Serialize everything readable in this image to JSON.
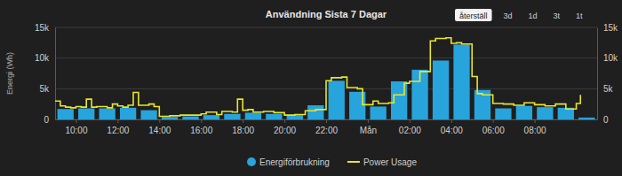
{
  "buttons": [
    "återställ",
    "3d",
    "1d",
    "3t",
    "1t"
  ],
  "chart_data": {
    "type": "bar",
    "title": "Användning Sista 7 Dagar",
    "y_label": "Energi (Wh)",
    "xlim": [
      9,
      35
    ],
    "xticks": [
      {
        "value": 10,
        "label": "10:00"
      },
      {
        "value": 12,
        "label": "12:00"
      },
      {
        "value": 14,
        "label": "14:00"
      },
      {
        "value": 16,
        "label": "16:00"
      },
      {
        "value": 18,
        "label": "18:00"
      },
      {
        "value": 20,
        "label": "20:00"
      },
      {
        "value": 22,
        "label": "22:00"
      },
      {
        "value": 24,
        "label": "Mån"
      },
      {
        "value": 26,
        "label": "02:00"
      },
      {
        "value": 28,
        "label": "04:00"
      },
      {
        "value": 30,
        "label": "06:00"
      },
      {
        "value": 32,
        "label": "08:00"
      }
    ],
    "ylim": [
      0,
      15000
    ],
    "yticks": [
      0,
      {
        "value": 5000,
        "label": "5k"
      },
      {
        "value": 10000,
        "label": "10k"
      },
      {
        "value": 15000,
        "label": "15k"
      }
    ],
    "y2lim": [
      0,
      15000
    ],
    "y2ticks": [
      0,
      {
        "value": 5000,
        "label": "5k"
      },
      {
        "value": 10000,
        "label": "10k"
      },
      {
        "value": 15000,
        "label": "15k"
      }
    ],
    "grid": true,
    "legend": "bottom",
    "series": [
      {
        "name": "Energiförbrukning",
        "type": "bar",
        "color": "#27a4dc",
        "x": [
          9.5,
          10.5,
          11.5,
          12.5,
          13.5,
          14.5,
          15.5,
          16.5,
          17.5,
          18.5,
          19.5,
          20.5,
          21.5,
          22.5,
          23.5,
          24.5,
          25.5,
          26.5,
          27.5,
          28.5,
          29.5,
          30.5,
          31.5,
          32.5,
          33.5,
          34.5
        ],
        "values": [
          1700,
          1800,
          1800,
          1900,
          1500,
          400,
          500,
          700,
          900,
          1100,
          900,
          700,
          2300,
          6300,
          4500,
          2100,
          6200,
          8100,
          9600,
          12200,
          4800,
          1800,
          2200,
          2000,
          1900,
          300
        ]
      },
      {
        "name": "Power Usage",
        "type": "line",
        "color": "#e8e62a",
        "axis": "y2",
        "x": [
          9,
          9.25,
          9.5,
          9.75,
          10,
          10.25,
          10.5,
          10.75,
          11,
          11.5,
          11.75,
          12,
          12.25,
          12.5,
          12.75,
          13,
          13.5,
          13.75,
          14,
          14.5,
          15,
          15.5,
          16,
          16.25,
          16.75,
          17,
          17.5,
          17.75,
          18,
          18.25,
          18.5,
          19,
          19.5,
          20,
          20.5,
          21,
          21.5,
          22,
          22.25,
          22.75,
          23,
          23.5,
          23.75,
          24.25,
          24.5,
          25,
          25.25,
          25.75,
          26,
          26.5,
          27,
          27.25,
          27.75,
          28,
          28.25,
          28.5,
          29,
          29.25,
          29.5,
          30,
          30.5,
          31,
          31.5,
          32,
          32.5,
          33,
          33.5,
          34,
          34.2
        ],
        "values": [
          3000,
          2200,
          2000,
          1900,
          2100,
          2000,
          3300,
          2000,
          2100,
          1900,
          2500,
          2200,
          2000,
          2300,
          4400,
          2300,
          2500,
          2100,
          500,
          600,
          700,
          700,
          900,
          1200,
          800,
          1300,
          1200,
          3300,
          1500,
          1600,
          1200,
          1300,
          1100,
          700,
          800,
          1400,
          1600,
          6300,
          6800,
          6900,
          5200,
          5000,
          2400,
          3000,
          2600,
          2700,
          4000,
          5900,
          6200,
          7800,
          12800,
          13200,
          13300,
          12400,
          12500,
          12300,
          7000,
          4200,
          4000,
          2600,
          2500,
          2300,
          2700,
          2400,
          2200,
          2500,
          1700,
          2600,
          4000
        ]
      }
    ]
  }
}
